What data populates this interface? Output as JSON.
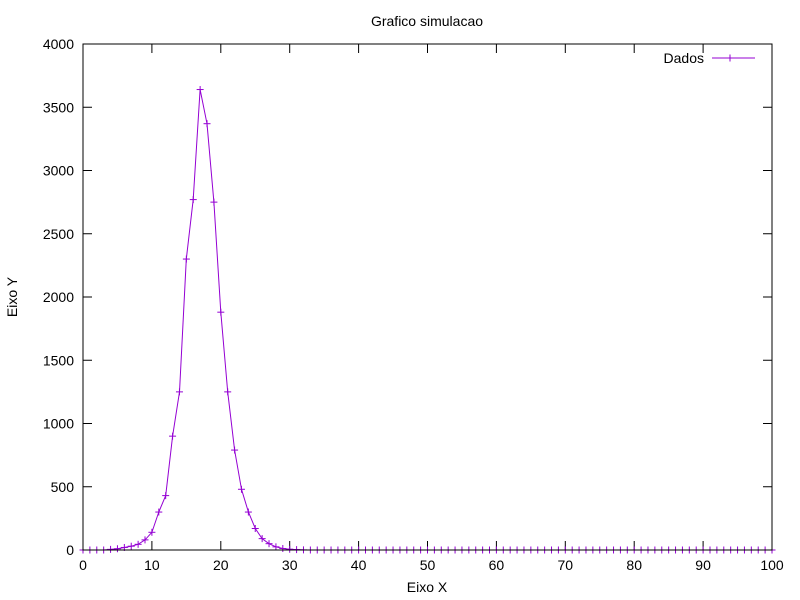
{
  "chart_data": {
    "type": "line",
    "title": "Grafico simulacao",
    "xlabel": "Eixo X",
    "ylabel": "Eixo Y",
    "xlim": [
      0,
      100
    ],
    "ylim": [
      0,
      4000
    ],
    "x_ticks": [
      0,
      10,
      20,
      30,
      40,
      50,
      60,
      70,
      80,
      90,
      100
    ],
    "y_ticks": [
      0,
      500,
      1000,
      1500,
      2000,
      2500,
      3000,
      3500,
      4000
    ],
    "grid": false,
    "legend_position": "top-right",
    "series": [
      {
        "name": "Dados",
        "color": "#9400d3",
        "marker": "plus",
        "x": [
          0,
          1,
          2,
          3,
          4,
          5,
          6,
          7,
          8,
          9,
          10,
          11,
          12,
          13,
          14,
          15,
          16,
          17,
          18,
          19,
          20,
          21,
          22,
          23,
          24,
          25,
          26,
          27,
          28,
          29,
          30,
          31,
          32,
          33,
          34,
          35,
          36,
          37,
          38,
          39,
          40,
          41,
          42,
          43,
          44,
          45,
          46,
          47,
          48,
          49,
          50,
          51,
          52,
          53,
          54,
          55,
          56,
          57,
          58,
          59,
          60,
          61,
          62,
          63,
          64,
          65,
          66,
          67,
          68,
          69,
          70,
          71,
          72,
          73,
          74,
          75,
          76,
          77,
          78,
          79,
          80,
          81,
          82,
          83,
          84,
          85,
          86,
          87,
          88,
          89,
          90,
          91,
          92,
          93,
          94,
          95,
          96,
          97,
          98,
          99,
          100
        ],
        "values": [
          0,
          0,
          0,
          0,
          5,
          10,
          20,
          30,
          45,
          80,
          140,
          300,
          430,
          900,
          1250,
          2300,
          2770,
          3640,
          3370,
          2750,
          1880,
          1250,
          790,
          480,
          300,
          170,
          90,
          50,
          25,
          12,
          6,
          3,
          1,
          0,
          0,
          0,
          0,
          0,
          0,
          0,
          0,
          0,
          0,
          0,
          0,
          0,
          0,
          0,
          0,
          0,
          0,
          0,
          0,
          0,
          0,
          0,
          0,
          0,
          0,
          0,
          0,
          0,
          0,
          0,
          0,
          0,
          0,
          0,
          0,
          0,
          0,
          0,
          0,
          0,
          0,
          0,
          0,
          0,
          0,
          0,
          0,
          0,
          0,
          0,
          0,
          0,
          0,
          0,
          0,
          0,
          0,
          0,
          0,
          0,
          0,
          0,
          0,
          0,
          0,
          0,
          0
        ]
      }
    ]
  }
}
